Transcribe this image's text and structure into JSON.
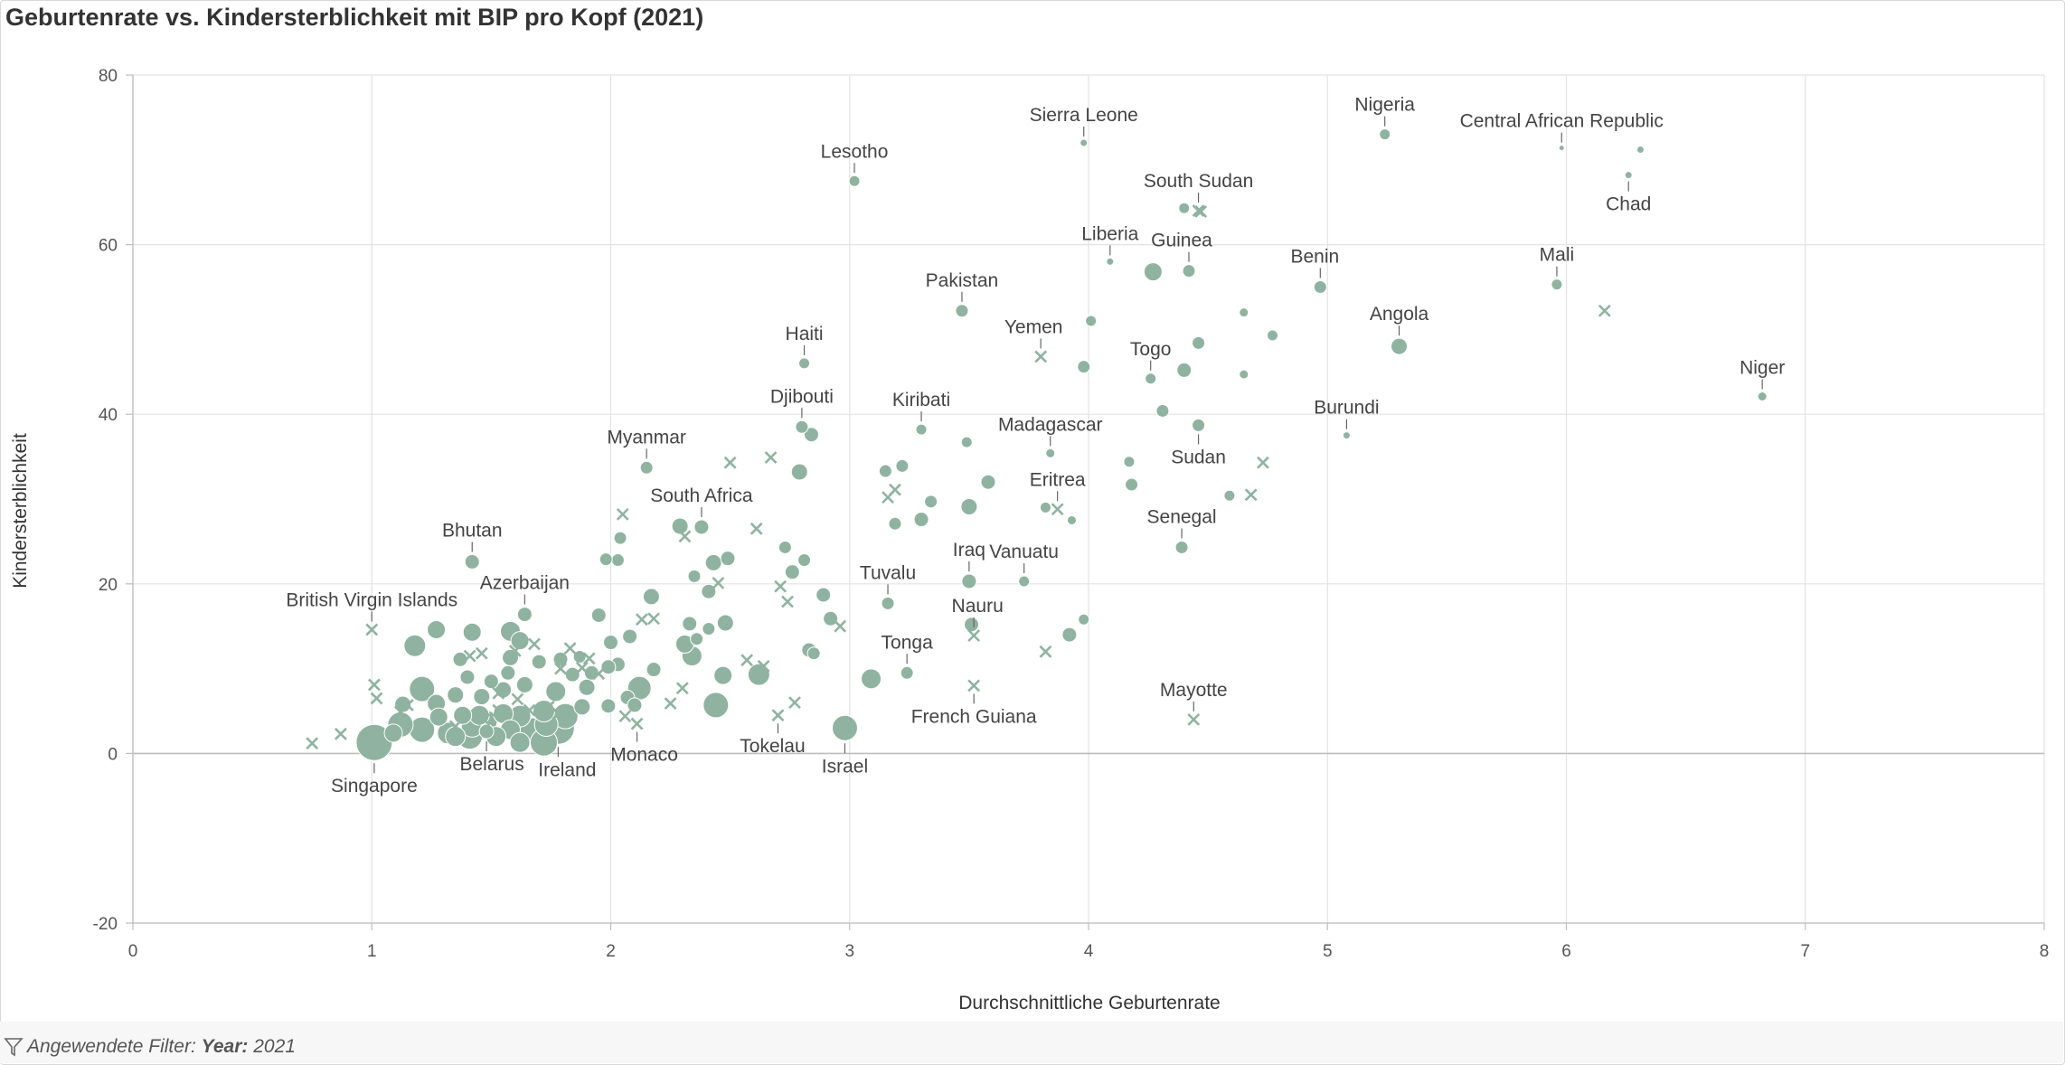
{
  "title": "Geburtenrate vs. Kindersterblichkeit mit BIP pro Kopf (2021)",
  "filter": {
    "prefix": "Angewendete Filter:",
    "field": "Year:",
    "value": "2021"
  },
  "colors": {
    "marker": "#8fb3a0",
    "marker_stroke": "#ffffff",
    "grid": "#e3e3e3",
    "zero_line": "#bdbdbd"
  },
  "chart_data": {
    "type": "scatter",
    "xlabel": "Durchschnittliche Geburtenrate",
    "ylabel": "Kindersterblichkeit",
    "xlim": [
      0,
      8
    ],
    "ylim": [
      -20,
      80
    ],
    "xticks": [
      0,
      1,
      2,
      3,
      4,
      5,
      6,
      7,
      8
    ],
    "yticks": [
      -20,
      0,
      20,
      40,
      60,
      80
    ],
    "grid": true,
    "size_encoding": "BIP pro Kopf",
    "shape_encoding": "circle = value available, cross = no GDP data",
    "labeled_points": [
      {
        "label": "Nigeria",
        "x": 5.24,
        "y": 73.0,
        "s": 6
      },
      {
        "label": "Sierra Leone",
        "x": 3.98,
        "y": 72.0,
        "s": 4
      },
      {
        "label": "Central African Republic",
        "x": 5.98,
        "y": 71.4,
        "s": 3
      },
      {
        "label": "Chad",
        "x": 6.26,
        "y": 68.2,
        "s": 4
      },
      {
        "label": "Lesotho",
        "x": 3.02,
        "y": 67.5,
        "s": 6
      },
      {
        "label": "South Sudan",
        "x": 4.46,
        "y": 64.0,
        "s": 0,
        "marker": "x"
      },
      {
        "label": "Guinea",
        "x": 4.42,
        "y": 56.9,
        "s": 7
      },
      {
        "label": "Liberia",
        "x": 4.09,
        "y": 58.0,
        "s": 4
      },
      {
        "label": "Benin",
        "x": 4.97,
        "y": 55.0,
        "s": 7
      },
      {
        "label": "Mali",
        "x": 5.96,
        "y": 55.3,
        "s": 6
      },
      {
        "label": "Pakistan",
        "x": 3.47,
        "y": 52.2,
        "s": 7
      },
      {
        "label": "Yemen",
        "x": 3.8,
        "y": 46.8,
        "s": 0,
        "marker": "x"
      },
      {
        "label": "Angola",
        "x": 5.3,
        "y": 48.0,
        "s": 9
      },
      {
        "label": "Haiti",
        "x": 2.81,
        "y": 46.0,
        "s": 6
      },
      {
        "label": "Togo",
        "x": 4.26,
        "y": 44.2,
        "s": 6
      },
      {
        "label": "Niger",
        "x": 6.82,
        "y": 42.1,
        "s": 5
      },
      {
        "label": "Djibouti",
        "x": 2.8,
        "y": 38.5,
        "s": 7
      },
      {
        "label": "Kiribati",
        "x": 3.3,
        "y": 38.2,
        "s": 6
      },
      {
        "label": "Burundi",
        "x": 5.08,
        "y": 37.5,
        "s": 4
      },
      {
        "label": "Madagascar",
        "x": 3.84,
        "y": 35.4,
        "s": 5
      },
      {
        "label": "Myanmar",
        "x": 2.15,
        "y": 33.7,
        "s": 7
      },
      {
        "label": "Sudan",
        "x": 4.46,
        "y": 38.7,
        "s": 7
      },
      {
        "label": "Eritrea",
        "x": 3.87,
        "y": 28.8,
        "s": 0,
        "marker": "x"
      },
      {
        "label": "South Africa",
        "x": 2.38,
        "y": 26.7,
        "s": 8
      },
      {
        "label": "Senegal",
        "x": 4.39,
        "y": 24.3,
        "s": 7
      },
      {
        "label": "Bhutan",
        "x": 1.42,
        "y": 22.6,
        "s": 8
      },
      {
        "label": "Iraq",
        "x": 3.5,
        "y": 20.3,
        "s": 8
      },
      {
        "label": "Vanuatu",
        "x": 3.73,
        "y": 20.3,
        "s": 6
      },
      {
        "label": "Tuvalu",
        "x": 3.16,
        "y": 17.7,
        "s": 7
      },
      {
        "label": "Azerbaijan",
        "x": 1.64,
        "y": 16.4,
        "s": 8
      },
      {
        "label": "British Virgin Islands",
        "x": 1.0,
        "y": 14.6,
        "s": 0,
        "marker": "x"
      },
      {
        "label": "Nauru",
        "x": 3.52,
        "y": 13.9,
        "s": 0,
        "marker": "x"
      },
      {
        "label": "Tonga",
        "x": 3.24,
        "y": 9.5,
        "s": 7
      },
      {
        "label": "French Guiana",
        "x": 3.52,
        "y": 8.0,
        "s": 0,
        "marker": "x"
      },
      {
        "label": "Mayotte",
        "x": 4.44,
        "y": 4.0,
        "s": 0,
        "marker": "x"
      },
      {
        "label": "Monaco",
        "x": 2.11,
        "y": 3.5,
        "s": 0,
        "marker": "x"
      },
      {
        "label": "Tokelau",
        "x": 2.7,
        "y": 4.5,
        "s": 0,
        "marker": "x"
      },
      {
        "label": "Israel",
        "x": 2.98,
        "y": 3.0,
        "s": 14
      },
      {
        "label": "Singapore",
        "x": 1.01,
        "y": 1.3,
        "s": 20
      },
      {
        "label": "Belarus",
        "x": 1.48,
        "y": 2.6,
        "s": 8
      },
      {
        "label": "Ireland",
        "x": 1.78,
        "y": 3.0,
        "s": 18
      }
    ],
    "unlabeled_points": [
      [
        6.31,
        71.2,
        4
      ],
      [
        4.4,
        64.3,
        6
      ],
      [
        4.27,
        56.8,
        10
      ],
      [
        4.01,
        51.0,
        6
      ],
      [
        4.65,
        52.0,
        5
      ],
      [
        4.77,
        49.3,
        6
      ],
      [
        4.46,
        48.4,
        7
      ],
      [
        3.98,
        45.6,
        7
      ],
      [
        4.4,
        45.2,
        8
      ],
      [
        4.65,
        44.7,
        5
      ],
      [
        4.31,
        40.4,
        7
      ],
      [
        2.84,
        37.6,
        8
      ],
      [
        2.79,
        33.2,
        9
      ],
      [
        3.49,
        36.7,
        6
      ],
      [
        3.15,
        33.3,
        7
      ],
      [
        3.22,
        33.9,
        7
      ],
      [
        3.58,
        32.0,
        8
      ],
      [
        4.17,
        34.4,
        6
      ],
      [
        4.18,
        31.7,
        7
      ],
      [
        4.59,
        30.4,
        6
      ],
      [
        3.34,
        29.7,
        7
      ],
      [
        3.5,
        29.1,
        9
      ],
      [
        3.3,
        27.6,
        8
      ],
      [
        3.82,
        29.0,
        6
      ],
      [
        3.93,
        27.5,
        5
      ],
      [
        3.19,
        27.1,
        7
      ],
      [
        2.73,
        24.3,
        7
      ],
      [
        2.76,
        21.4,
        8
      ],
      [
        2.81,
        22.8,
        7
      ],
      [
        2.89,
        18.7,
        8
      ],
      [
        2.92,
        15.9,
        8
      ],
      [
        2.83,
        12.2,
        8
      ],
      [
        2.85,
        11.8,
        7
      ],
      [
        3.51,
        15.2,
        8
      ],
      [
        3.98,
        15.8,
        6
      ],
      [
        3.92,
        14.0,
        8
      ],
      [
        3.09,
        8.8,
        11
      ],
      [
        2.29,
        26.8,
        9
      ],
      [
        2.43,
        22.5,
        9
      ],
      [
        2.49,
        23.0,
        8
      ],
      [
        2.35,
        20.9,
        7
      ],
      [
        2.41,
        19.1,
        8
      ],
      [
        2.04,
        25.4,
        7
      ],
      [
        2.03,
        22.8,
        7
      ],
      [
        1.98,
        22.9,
        7
      ],
      [
        2.17,
        18.5,
        9
      ],
      [
        2.33,
        15.3,
        8
      ],
      [
        2.41,
        14.7,
        7
      ],
      [
        2.48,
        15.4,
        9
      ],
      [
        2.31,
        12.9,
        10
      ],
      [
        2.36,
        13.5,
        7
      ],
      [
        2.34,
        11.5,
        11
      ],
      [
        2.47,
        9.2,
        10
      ],
      [
        2.18,
        9.9,
        8
      ],
      [
        2.44,
        5.7,
        14
      ],
      [
        2.62,
        9.3,
        12
      ],
      [
        1.95,
        16.3,
        8
      ],
      [
        2.08,
        13.8,
        8
      ],
      [
        2.0,
        13.1,
        8
      ],
      [
        2.03,
        10.5,
        8
      ],
      [
        2.12,
        7.7,
        13
      ],
      [
        2.07,
        6.6,
        8
      ],
      [
        2.1,
        5.7,
        8
      ],
      [
        1.99,
        5.6,
        8
      ],
      [
        1.27,
        14.6,
        10
      ],
      [
        1.18,
        12.7,
        12
      ],
      [
        1.42,
        14.3,
        10
      ],
      [
        1.58,
        14.4,
        11
      ],
      [
        1.62,
        13.3,
        10
      ],
      [
        1.37,
        11.1,
        8
      ],
      [
        1.58,
        11.3,
        9
      ],
      [
        1.64,
        8.1,
        9
      ],
      [
        1.7,
        10.8,
        8
      ],
      [
        1.79,
        11.1,
        8
      ],
      [
        1.87,
        11.4,
        7
      ],
      [
        1.92,
        9.5,
        8
      ],
      [
        1.77,
        7.3,
        11
      ],
      [
        1.9,
        7.8,
        9
      ],
      [
        1.84,
        9.3,
        8
      ],
      [
        1.57,
        9.5,
        8
      ],
      [
        1.4,
        9.0,
        8
      ],
      [
        1.5,
        8.5,
        8
      ],
      [
        1.55,
        7.5,
        9
      ],
      [
        1.46,
        6.7,
        9
      ],
      [
        1.35,
        6.9,
        9
      ],
      [
        1.21,
        7.6,
        14
      ],
      [
        1.13,
        5.8,
        9
      ],
      [
        1.27,
        5.9,
        10
      ],
      [
        1.38,
        4.5,
        10
      ],
      [
        1.28,
        4.3,
        10
      ],
      [
        1.32,
        2.4,
        12
      ],
      [
        1.21,
        2.8,
        14
      ],
      [
        1.12,
        3.4,
        14
      ],
      [
        1.09,
        2.4,
        10
      ],
      [
        1.45,
        4.5,
        11
      ],
      [
        1.55,
        4.7,
        11
      ],
      [
        1.62,
        4.4,
        12
      ],
      [
        1.72,
        5.0,
        12
      ],
      [
        1.81,
        4.4,
        14
      ],
      [
        1.73,
        3.4,
        13
      ],
      [
        1.67,
        2.6,
        15
      ],
      [
        1.58,
        2.8,
        11
      ],
      [
        1.48,
        3.8,
        12
      ],
      [
        1.41,
        2.0,
        14
      ],
      [
        1.52,
        2.0,
        11
      ],
      [
        1.72,
        1.3,
        15
      ],
      [
        1.62,
        1.3,
        11
      ],
      [
        1.88,
        5.5,
        9
      ],
      [
        1.99,
        10.2,
        8
      ],
      [
        1.42,
        3.2,
        12
      ],
      [
        1.35,
        2.0,
        11
      ]
    ],
    "cross_points": [
      [
        6.16,
        52.2
      ],
      [
        4.47,
        63.9
      ],
      [
        4.73,
        34.3
      ],
      [
        4.68,
        30.5
      ],
      [
        3.82,
        12.0
      ],
      [
        3.19,
        31.1
      ],
      [
        3.16,
        30.2
      ],
      [
        2.67,
        34.9
      ],
      [
        2.5,
        34.3
      ],
      [
        2.05,
        28.2
      ],
      [
        2.31,
        25.6
      ],
      [
        2.61,
        26.5
      ],
      [
        2.71,
        19.7
      ],
      [
        2.74,
        17.9
      ],
      [
        2.45,
        20.1
      ],
      [
        2.3,
        7.7
      ],
      [
        2.25,
        5.9
      ],
      [
        2.57,
        11.0
      ],
      [
        2.64,
        10.3
      ],
      [
        2.77,
        6.0
      ],
      [
        2.18,
        15.9
      ],
      [
        2.13,
        15.8
      ],
      [
        2.06,
        4.4
      ],
      [
        1.41,
        11.5
      ],
      [
        1.46,
        11.8
      ],
      [
        1.68,
        12.9
      ],
      [
        1.6,
        12.1
      ],
      [
        1.83,
        12.4
      ],
      [
        1.79,
        10.0
      ],
      [
        1.88,
        10.1
      ],
      [
        1.95,
        9.4
      ],
      [
        1.91,
        11.2
      ],
      [
        1.01,
        8.1
      ],
      [
        1.02,
        6.5
      ],
      [
        0.87,
        2.3
      ],
      [
        0.75,
        1.2
      ],
      [
        1.12,
        4.9
      ],
      [
        1.15,
        5.7
      ],
      [
        1.53,
        7.1
      ],
      [
        1.61,
        6.4
      ],
      [
        1.66,
        5.1
      ],
      [
        1.74,
        5.5
      ],
      [
        1.35,
        3.2
      ],
      [
        1.47,
        4.0
      ],
      [
        1.53,
        5.1
      ],
      [
        1.21,
        3.3
      ],
      [
        2.96,
        15.0
      ],
      [
        1.78,
        4.7
      ]
    ]
  }
}
